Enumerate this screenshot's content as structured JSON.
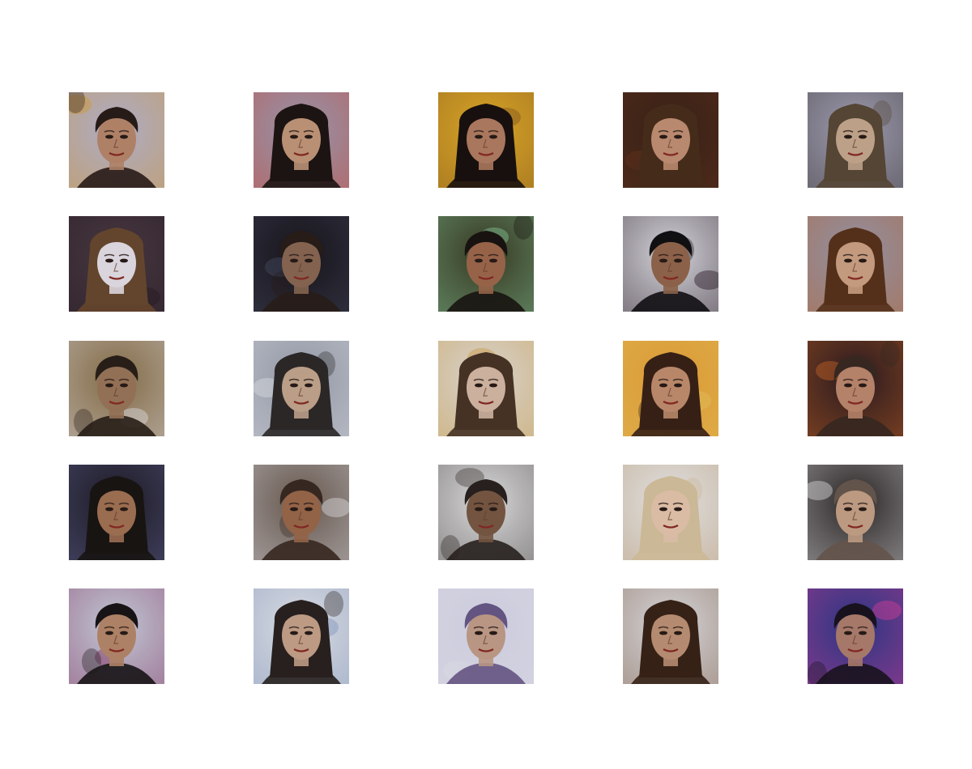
{
  "grid": {
    "rows": 5,
    "cols": 5
  },
  "tiles": [
    {
      "bg": "#b9b7d6",
      "hair": "#2a1d1a",
      "skin": "#b98a6e",
      "accent": "#d9a23a",
      "long_hair": false
    },
    {
      "bg": "#9da0b8",
      "hair": "#1e1614",
      "skin": "#c59a7c",
      "accent": "#d84a3a",
      "long_hair": true
    },
    {
      "bg": "#e8b22a",
      "hair": "#1a1210",
      "skin": "#b47f63",
      "accent": "#8a5a20",
      "long_hair": true
    },
    {
      "bg": "#3a2418",
      "hair": "#4a2e1c",
      "skin": "#c49275",
      "accent": "#6a3420",
      "long_hair": true
    },
    {
      "bg": "#aaa7bd",
      "hair": "#5a4a38",
      "skin": "#c8ab90",
      "accent": "#3a3636",
      "long_hair": true
    },
    {
      "bg": "#4a3a44",
      "hair": "#6a4a30",
      "skin": "#e8e2ea",
      "accent": "#2a1c24",
      "long_hair": true
    },
    {
      "bg": "#18141a",
      "hair": "#2a1e1a",
      "skin": "#8c6a54",
      "accent": "#4a5068",
      "long_hair": false
    },
    {
      "bg": "#3a3a22",
      "hair": "#1a1512",
      "skin": "#a06a4e",
      "accent": "#8ad0a0",
      "long_hair": false
    },
    {
      "bg": "#e4e4ea",
      "hair": "#121014",
      "skin": "#94684e",
      "accent": "#2a1a28",
      "long_hair": false
    },
    {
      "bg": "#9a9ab0",
      "hair": "#5a341c",
      "skin": "#d0a486",
      "accent": "#c06a30",
      "long_hair": true
    },
    {
      "bg": "#8a7048",
      "hair": "#2a201a",
      "skin": "#9c785c",
      "accent": "#e8e6ec",
      "long_hair": false
    },
    {
      "bg": "#9aa0ae",
      "hair": "#2e2a2a",
      "skin": "#c6a890",
      "accent": "#e6e8f0",
      "long_hair": true
    },
    {
      "bg": "#e6e2de",
      "hair": "#4a3628",
      "skin": "#d8bca8",
      "accent": "#d4a44a",
      "long_hair": true
    },
    {
      "bg": "#e8a438",
      "hair": "#3a2218",
      "skin": "#c49070",
      "accent": "#f0c860",
      "long_hair": true
    },
    {
      "bg": "#2a1a20",
      "hair": "#3a2a22",
      "skin": "#c08a70",
      "accent": "#d06a2a",
      "long_hair": false
    },
    {
      "bg": "#1c1a22",
      "hair": "#1a1614",
      "skin": "#a47456",
      "accent": "#6a6aa0",
      "long_hair": true
    },
    {
      "bg": "#6a5a50",
      "hair": "#3a2a22",
      "skin": "#9c6a4c",
      "accent": "#e8e8ee",
      "long_hair": false
    },
    {
      "bg": "#e8e8ea",
      "hair": "#2a2220",
      "skin": "#7a5a44",
      "accent": "#504a48",
      "long_hair": false
    },
    {
      "bg": "#f0f0f2",
      "hair": "#d8c4a0",
      "skin": "#e8c8b0",
      "accent": "#c0a078",
      "long_hair": true
    },
    {
      "bg": "#2a2424",
      "hair": "#6a5a50",
      "skin": "#c8a48a",
      "accent": "#e8e8ea",
      "long_hair": false
    },
    {
      "bg": "#cfd6e4",
      "hair": "#1a1618",
      "skin": "#b88a6c",
      "accent": "#8a3a6a",
      "long_hair": false
    },
    {
      "bg": "#e8eaf0",
      "hair": "#2a2220",
      "skin": "#c8a48c",
      "accent": "#8aa0c8",
      "long_hair": true
    },
    {
      "bg": "#d8d8ea",
      "hair": "#6a5a8a",
      "skin": "#c4a08c",
      "accent": "#e8e8f4",
      "long_hair": false
    },
    {
      "bg": "#e4e4ea",
      "hair": "#3a2418",
      "skin": "#c09478",
      "accent": "#8a6a50",
      "long_hair": true
    },
    {
      "bg": "#2a3a8a",
      "hair": "#1a1420",
      "skin": "#b08070",
      "accent": "#e040a0",
      "long_hair": false
    }
  ]
}
